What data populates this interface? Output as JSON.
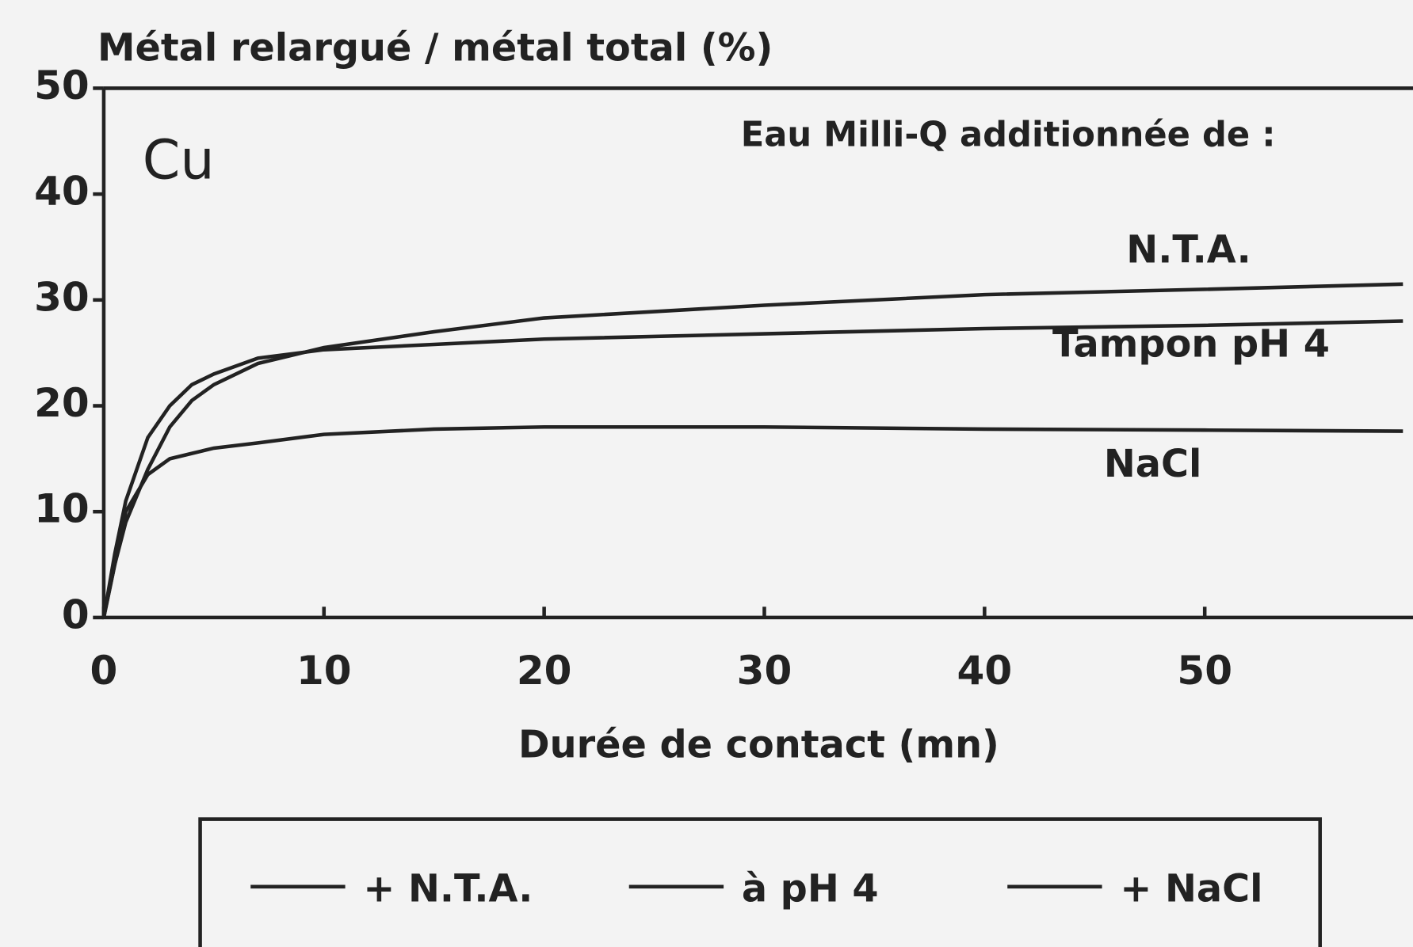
{
  "chart_data": {
    "type": "line",
    "y_label": "Métal relargué / métal total (%)",
    "x_label": "Durée de contact (mn)",
    "annotations": [
      "Cu",
      "Eau Milli-Q additionnée de :",
      "N.T.A.",
      "Tampon pH 4",
      "NaCl"
    ],
    "x": [
      0,
      0.5,
      1,
      2,
      3,
      4,
      5,
      7,
      10,
      15,
      20,
      30,
      40,
      50,
      59
    ],
    "series": [
      {
        "name": "+ N.T.A.",
        "color": "#222222",
        "values": [
          0,
          5,
          9,
          14,
          18,
          20.5,
          22,
          24,
          25.5,
          27,
          28.3,
          29.5,
          30.5,
          31,
          31.5
        ]
      },
      {
        "name": "à pH 4",
        "color": "#222222",
        "values": [
          0,
          6,
          11,
          17,
          20,
          22,
          23,
          24.5,
          25.3,
          25.8,
          26.3,
          26.8,
          27.3,
          27.6,
          28
        ]
      },
      {
        "name": "+ NaCl",
        "color": "#222222",
        "values": [
          0,
          5,
          10,
          13.5,
          15,
          15.5,
          16,
          16.5,
          17.3,
          17.8,
          18,
          18,
          17.8,
          17.7,
          17.6
        ]
      }
    ],
    "xlim": [
      0,
      59.5
    ],
    "xticks": [
      0,
      10,
      20,
      30,
      40,
      50
    ],
    "ylim": [
      0,
      50
    ],
    "yticks": [
      0,
      10,
      20,
      30,
      40,
      50
    ]
  }
}
